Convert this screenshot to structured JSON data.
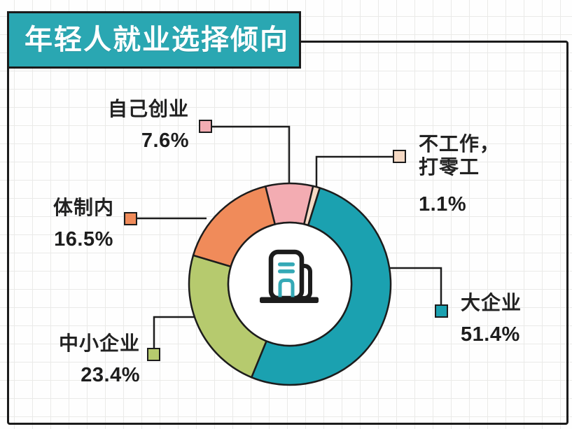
{
  "title_banner": {
    "text": "年轻人就业选择倾向",
    "bg_color": "#2aa7b2",
    "text_color": "#ffffff"
  },
  "chart_data": {
    "type": "pie",
    "subtype": "donut",
    "title": "年轻人就业选择倾向",
    "start_angle_deg": -14,
    "outline_color": "#1c1c1c",
    "center_icon": "office-building-icon",
    "legend_position": "callouts-around-donut",
    "slices": [
      {
        "id": "start-own-business",
        "label": "自己创业",
        "value": 7.6,
        "display": "7.6%",
        "color": "#f3acb2"
      },
      {
        "id": "odd-jobs-no-work",
        "label": "不工作，打零工",
        "label_lines": [
          "不工作，",
          "打零工"
        ],
        "value": 1.1,
        "display": "1.1%",
        "color": "#f5d9c4"
      },
      {
        "id": "large-enterprise",
        "label": "大企业",
        "value": 51.4,
        "display": "51.4%",
        "color": "#1ba1b0"
      },
      {
        "id": "small-medium-enterprise",
        "label": "中小企业",
        "value": 23.4,
        "display": "23.4%",
        "color": "#b6ca6e"
      },
      {
        "id": "within-system",
        "label": "体制内",
        "value": 16.5,
        "display": "16.5%",
        "color": "#f08b5a"
      }
    ]
  }
}
